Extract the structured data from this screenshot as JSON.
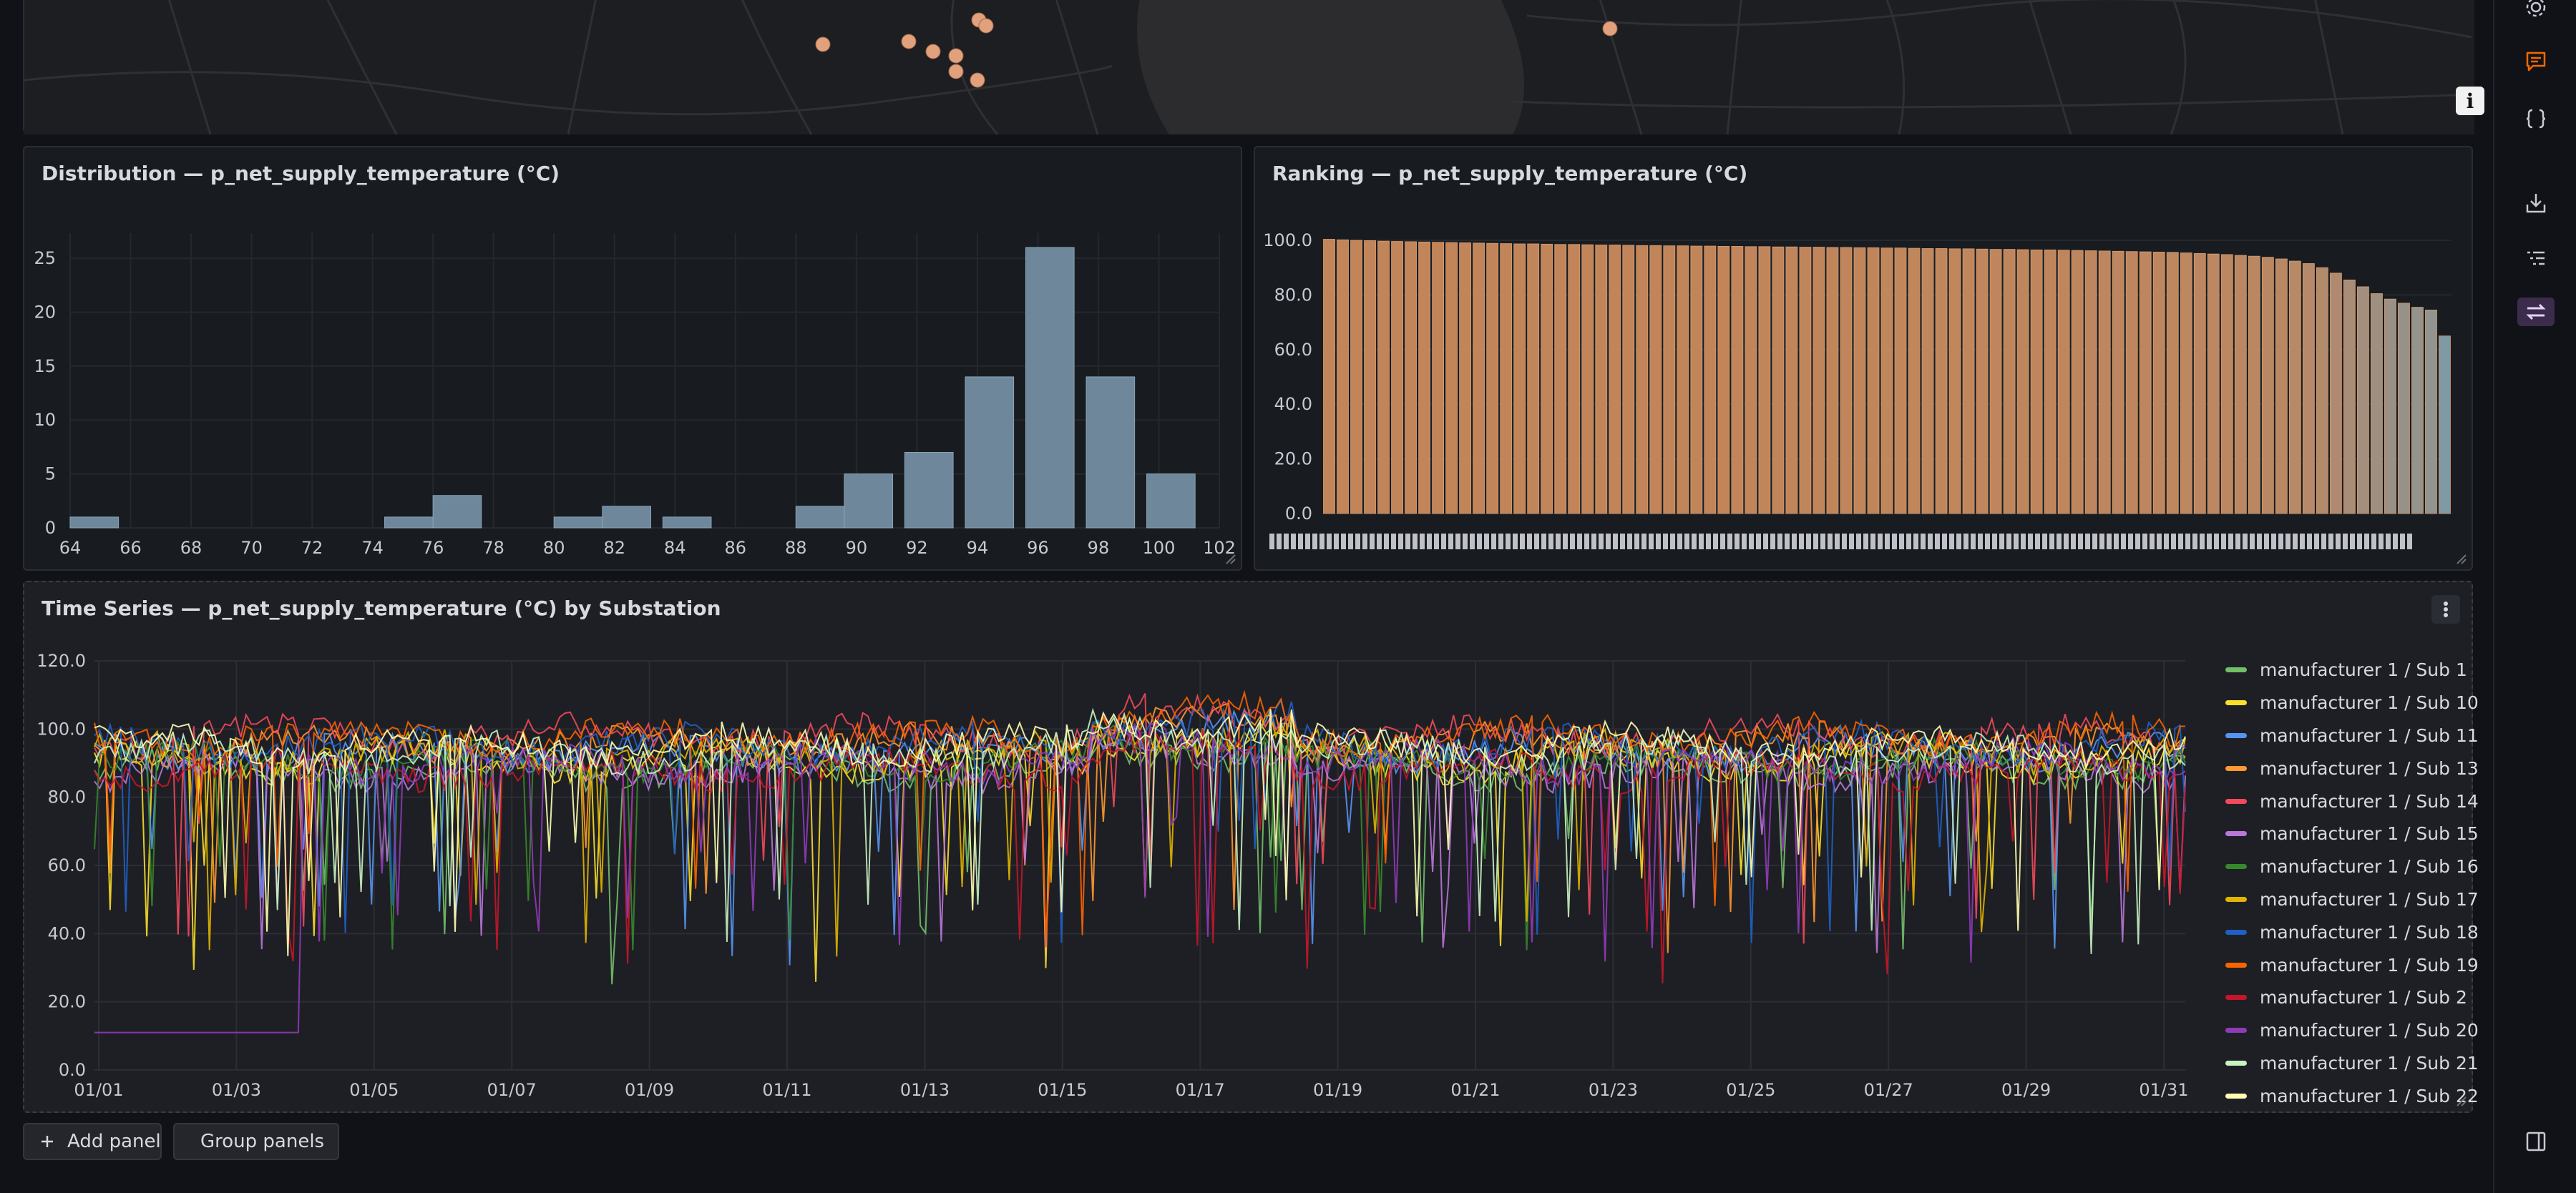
{
  "map": {
    "info_label": "i",
    "markers": [
      {
        "lon": 1116,
        "lat": 70
      },
      {
        "lon": 1236,
        "lat": 66
      },
      {
        "lon": 1270,
        "lat": 80
      },
      {
        "lon": 1302,
        "lat": 86
      },
      {
        "lon": 1334,
        "lat": 36
      },
      {
        "lon": 1344,
        "lat": 44
      },
      {
        "lon": 1302,
        "lat": 108
      },
      {
        "lon": 1332,
        "lat": 120
      },
      {
        "lon": 2216,
        "lat": 48
      }
    ]
  },
  "histogram": {
    "title": "Distribution — p_net_supply_temperature (°C)",
    "chart_data": {
      "type": "bar",
      "bin_width": 1.6,
      "bins": [
        {
          "start": 64,
          "count": 1
        },
        {
          "start": 74.4,
          "count": 1
        },
        {
          "start": 76,
          "count": 3
        },
        {
          "start": 80,
          "count": 1
        },
        {
          "start": 81.6,
          "count": 2
        },
        {
          "start": 83.6,
          "count": 1
        },
        {
          "start": 88,
          "count": 2
        },
        {
          "start": 89.6,
          "count": 5
        },
        {
          "start": 91.6,
          "count": 7
        },
        {
          "start": 93.6,
          "count": 14
        },
        {
          "start": 95.6,
          "count": 26
        },
        {
          "start": 97.6,
          "count": 14
        },
        {
          "start": 99.6,
          "count": 5
        }
      ],
      "xlim": [
        64,
        102
      ],
      "ylim": [
        0,
        26
      ],
      "xticks": [
        "64",
        "66",
        "68",
        "70",
        "72",
        "74",
        "76",
        "78",
        "80",
        "82",
        "84",
        "86",
        "88",
        "90",
        "92",
        "94",
        "96",
        "98",
        "100",
        "102"
      ],
      "yticks": [
        "0",
        "5",
        "10",
        "15",
        "20",
        "25"
      ],
      "xlabel": "",
      "ylabel": ""
    }
  },
  "ranking": {
    "title": "Ranking — p_net_supply_temperature (°C)",
    "chart_data": {
      "type": "bar",
      "ylim": [
        0,
        100
      ],
      "yticks": [
        "0.0",
        "20.0",
        "40.0",
        "60.0",
        "80.0",
        "100.0"
      ],
      "values": [
        100.4,
        100.2,
        100.0,
        99.9,
        99.7,
        99.6,
        99.5,
        99.4,
        99.3,
        99.2,
        99.1,
        99.0,
        98.9,
        98.8,
        98.7,
        98.7,
        98.6,
        98.5,
        98.5,
        98.4,
        98.3,
        98.3,
        98.2,
        98.1,
        98.1,
        98.0,
        98.0,
        97.9,
        97.9,
        97.8,
        97.8,
        97.7,
        97.7,
        97.6,
        97.6,
        97.5,
        97.5,
        97.4,
        97.4,
        97.3,
        97.3,
        97.2,
        97.2,
        97.1,
        97.0,
        97.0,
        96.9,
        96.9,
        96.8,
        96.7,
        96.7,
        96.6,
        96.5,
        96.5,
        96.4,
        96.3,
        96.2,
        96.1,
        96.0,
        95.9,
        95.8,
        95.7,
        95.6,
        95.4,
        95.2,
        95.0,
        94.8,
        94.5,
        94.2,
        93.8,
        93.2,
        92.4,
        91.5,
        90.0,
        88.0,
        85.5,
        83.0,
        80.5,
        78.5,
        77.0,
        75.5,
        74.5,
        65.0
      ]
    }
  },
  "timeseries": {
    "title": "Time Series — p_net_supply_temperature (°C) by Substation",
    "chart_data": {
      "type": "line",
      "x_range": [
        "01/01",
        "02/01"
      ],
      "xticks": [
        "01/01",
        "01/03",
        "01/05",
        "01/07",
        "01/09",
        "01/11",
        "01/13",
        "01/15",
        "01/17",
        "01/19",
        "01/21",
        "01/23",
        "01/25",
        "01/27",
        "01/29",
        "01/31"
      ],
      "ylim": [
        0,
        120
      ],
      "yticks": [
        "0.0",
        "20.0",
        "40.0",
        "60.0",
        "80.0",
        "100.0",
        "120.0"
      ],
      "series": [
        {
          "name": "manufacturer 1 / Sub 1",
          "color": "#73bf69"
        },
        {
          "name": "manufacturer 1 / Sub 10",
          "color": "#fade2a"
        },
        {
          "name": "manufacturer 1 / Sub 11",
          "color": "#5794f2"
        },
        {
          "name": "manufacturer 1 / Sub 13",
          "color": "#ff9830"
        },
        {
          "name": "manufacturer 1 / Sub 14",
          "color": "#f2495c"
        },
        {
          "name": "manufacturer 1 / Sub 15",
          "color": "#b877d9"
        },
        {
          "name": "manufacturer 1 / Sub 16",
          "color": "#37872d"
        },
        {
          "name": "manufacturer 1 / Sub 17",
          "color": "#e0b400"
        },
        {
          "name": "manufacturer 1 / Sub 18",
          "color": "#1f60c4"
        },
        {
          "name": "manufacturer 1 / Sub 19",
          "color": "#fa6400"
        },
        {
          "name": "manufacturer 1 / Sub 2",
          "color": "#c4162a"
        },
        {
          "name": "manufacturer 1 / Sub 20",
          "color": "#8f3bb8"
        },
        {
          "name": "manufacturer 1 / Sub 21",
          "color": "#c8f2c2"
        },
        {
          "name": "manufacturer 1 / Sub 22",
          "color": "#ffffb2"
        }
      ]
    }
  },
  "buttons": {
    "add_panel": "Add panel",
    "group_panels": "Group panels"
  },
  "colors": {
    "histogram_bar": "#6e879b",
    "ranking_high": "#c2855a",
    "ranking_low": "#7f9aa4",
    "accent": "#f46800",
    "marker": "#e1a17c"
  }
}
